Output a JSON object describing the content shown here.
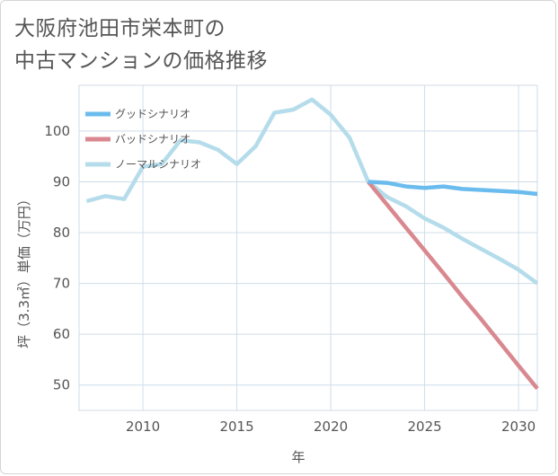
{
  "title": {
    "line1": "大阪府池田市栄本町の",
    "line2": "中古マンションの価格推移"
  },
  "chart_data": {
    "type": "line",
    "title": "大阪府池田市栄本町の中古マンションの価格推移",
    "xlabel": "年",
    "ylabel": "坪（3.3㎡）単価（万円）",
    "xlim": [
      2006.6,
      2031
    ],
    "ylim": [
      45,
      109
    ],
    "x_ticks": [
      2010,
      2015,
      2020,
      2025,
      2030
    ],
    "y_ticks": [
      50,
      60,
      70,
      80,
      90,
      100
    ],
    "grid": true,
    "legend_position": "top-left",
    "series": [
      {
        "name": "グッドシナリオ",
        "color": "#6bbcee",
        "points": [
          [
            2022,
            90
          ],
          [
            2023,
            89.8
          ],
          [
            2024,
            89.1
          ],
          [
            2025,
            88.8
          ],
          [
            2026,
            89.1
          ],
          [
            2027,
            88.6
          ],
          [
            2028,
            88.4
          ],
          [
            2029,
            88.2
          ],
          [
            2030,
            88
          ],
          [
            2031,
            87.6
          ]
        ]
      },
      {
        "name": "バッドシナリオ",
        "color": "#d98890",
        "points": [
          [
            2022,
            90
          ],
          [
            2023,
            85.5
          ],
          [
            2024,
            81
          ],
          [
            2025,
            76.5
          ],
          [
            2026,
            72
          ],
          [
            2027,
            67.4
          ],
          [
            2028,
            63
          ],
          [
            2029,
            58.4
          ],
          [
            2030,
            53.8
          ],
          [
            2031,
            49.3
          ]
        ]
      },
      {
        "name": "ノーマルシナリオ",
        "color": "#b5dceb",
        "points": [
          [
            2007,
            86.2
          ],
          [
            2008,
            87.2
          ],
          [
            2009,
            86.6
          ],
          [
            2010,
            93
          ],
          [
            2011,
            93.5
          ],
          [
            2012,
            98.2
          ],
          [
            2013,
            97.8
          ],
          [
            2014,
            96.3
          ],
          [
            2015,
            93.5
          ],
          [
            2016,
            97
          ],
          [
            2017,
            103.6
          ],
          [
            2018,
            104.2
          ],
          [
            2019,
            106.2
          ],
          [
            2020,
            103.2
          ],
          [
            2021,
            98.7
          ],
          [
            2022,
            90
          ],
          [
            2023,
            87
          ],
          [
            2024,
            85.2
          ],
          [
            2025,
            82.8
          ],
          [
            2026,
            81
          ],
          [
            2027,
            78.8
          ],
          [
            2028,
            76.8
          ],
          [
            2029,
            74.8
          ],
          [
            2030,
            72.7
          ],
          [
            2031,
            70
          ]
        ]
      }
    ]
  }
}
